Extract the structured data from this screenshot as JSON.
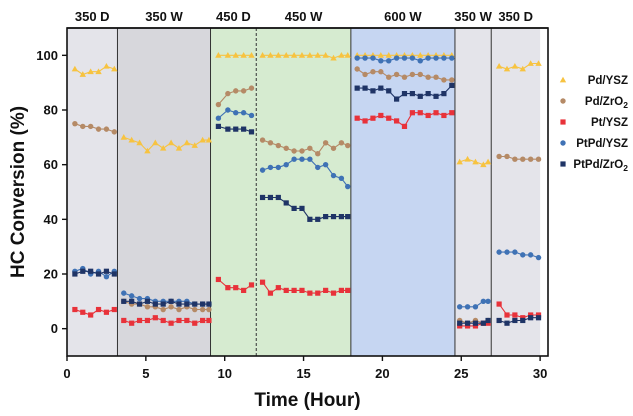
{
  "chart_data": {
    "type": "scatter",
    "title": "",
    "xlabel": "Time (Hour)",
    "ylabel": "HC Conversion (%)",
    "xlim": [
      0,
      30.5
    ],
    "ylim": [
      -10,
      110
    ],
    "xticks": [
      "0",
      "5",
      "10",
      "15",
      "20",
      "25",
      "30"
    ],
    "yticks": [
      "0",
      "20",
      "40",
      "60",
      "80",
      "100"
    ],
    "legend_position": "right",
    "regions": [
      {
        "label": "350 D",
        "x0": 0,
        "x1": 3.2,
        "color": "#e4e4ea"
      },
      {
        "label": "350 W",
        "x0": 3.2,
        "x1": 9.1,
        "color": "#d7d7dc"
      },
      {
        "label": "450 D",
        "x0": 9.1,
        "x1": 12.0,
        "color": "#d6ebd0"
      },
      {
        "label": "450 W",
        "x0": 12.0,
        "x1": 18.0,
        "color": "#d6ebd0"
      },
      {
        "label": "600 W",
        "x0": 18.0,
        "x1": 24.6,
        "color": "#c6d6f2"
      },
      {
        "label": "350 W",
        "x0": 24.6,
        "x1": 26.9,
        "color": "#e4e4ea"
      },
      {
        "label": "350 D",
        "x0": 26.9,
        "x1": 30.0,
        "color": "#e4e4ea"
      }
    ],
    "series": [
      {
        "name": "Pd/YSZ",
        "marker": "triangle",
        "color": "#f7c340",
        "points": [
          [
            0.5,
            95
          ],
          [
            1.0,
            93
          ],
          [
            1.5,
            94
          ],
          [
            2.0,
            94
          ],
          [
            2.5,
            96
          ],
          [
            3.0,
            95
          ],
          [
            3.6,
            70
          ],
          [
            4.1,
            69
          ],
          [
            4.6,
            68
          ],
          [
            5.1,
            65
          ],
          [
            5.6,
            68
          ],
          [
            6.1,
            66
          ],
          [
            6.6,
            68
          ],
          [
            7.1,
            66
          ],
          [
            7.6,
            68
          ],
          [
            8.1,
            67
          ],
          [
            8.6,
            69
          ],
          [
            9.0,
            69
          ],
          [
            9.6,
            100
          ],
          [
            10.2,
            100
          ],
          [
            10.7,
            100
          ],
          [
            11.2,
            100
          ],
          [
            11.7,
            100
          ],
          [
            12.4,
            100
          ],
          [
            12.9,
            100
          ],
          [
            13.4,
            100
          ],
          [
            13.9,
            100
          ],
          [
            14.4,
            100
          ],
          [
            14.9,
            100
          ],
          [
            15.4,
            100
          ],
          [
            15.9,
            100
          ],
          [
            16.4,
            100
          ],
          [
            16.9,
            99
          ],
          [
            17.4,
            100
          ],
          [
            17.8,
            100
          ],
          [
            18.4,
            100
          ],
          [
            18.9,
            100
          ],
          [
            19.4,
            100
          ],
          [
            19.9,
            100
          ],
          [
            20.4,
            100
          ],
          [
            20.9,
            100
          ],
          [
            21.4,
            100
          ],
          [
            21.9,
            100
          ],
          [
            22.4,
            100
          ],
          [
            22.9,
            100
          ],
          [
            23.4,
            100
          ],
          [
            23.9,
            100
          ],
          [
            24.4,
            100
          ],
          [
            24.9,
            61
          ],
          [
            25.4,
            62
          ],
          [
            25.9,
            61
          ],
          [
            26.4,
            60
          ],
          [
            26.7,
            61
          ],
          [
            27.4,
            96
          ],
          [
            27.9,
            95
          ],
          [
            28.4,
            96
          ],
          [
            28.9,
            95
          ],
          [
            29.4,
            97
          ],
          [
            29.9,
            97
          ]
        ]
      },
      {
        "name": "Pd/ZrO2",
        "marker": "circle",
        "color": "#b58a66",
        "points": [
          [
            0.5,
            75
          ],
          [
            1.0,
            74
          ],
          [
            1.5,
            74
          ],
          [
            2.0,
            73
          ],
          [
            2.5,
            73
          ],
          [
            3.0,
            72
          ],
          [
            3.6,
            10
          ],
          [
            4.1,
            9
          ],
          [
            4.6,
            9
          ],
          [
            5.1,
            8
          ],
          [
            5.6,
            8
          ],
          [
            6.1,
            7
          ],
          [
            6.6,
            8
          ],
          [
            7.1,
            7
          ],
          [
            7.6,
            8
          ],
          [
            8.1,
            7
          ],
          [
            8.6,
            7
          ],
          [
            9.0,
            7
          ],
          [
            9.6,
            82
          ],
          [
            10.2,
            86
          ],
          [
            10.7,
            87
          ],
          [
            11.2,
            87
          ],
          [
            11.7,
            88
          ],
          [
            12.4,
            69
          ],
          [
            12.9,
            68
          ],
          [
            13.4,
            67
          ],
          [
            13.9,
            66
          ],
          [
            14.4,
            65
          ],
          [
            14.9,
            65
          ],
          [
            15.4,
            66
          ],
          [
            15.9,
            64
          ],
          [
            16.4,
            68
          ],
          [
            16.9,
            66
          ],
          [
            17.4,
            68
          ],
          [
            17.8,
            67
          ],
          [
            18.4,
            95
          ],
          [
            18.9,
            93
          ],
          [
            19.4,
            94
          ],
          [
            19.9,
            94
          ],
          [
            20.4,
            92
          ],
          [
            20.9,
            93
          ],
          [
            21.4,
            92
          ],
          [
            21.9,
            93
          ],
          [
            22.4,
            93
          ],
          [
            22.9,
            92
          ],
          [
            23.4,
            92
          ],
          [
            23.9,
            91
          ],
          [
            24.4,
            91
          ],
          [
            24.9,
            3
          ],
          [
            25.4,
            2
          ],
          [
            25.9,
            3
          ],
          [
            26.4,
            2
          ],
          [
            26.7,
            3
          ],
          [
            27.4,
            63
          ],
          [
            27.9,
            63
          ],
          [
            28.4,
            62
          ],
          [
            28.9,
            62
          ],
          [
            29.4,
            62
          ],
          [
            29.9,
            62
          ]
        ]
      },
      {
        "name": "Pt/YSZ",
        "marker": "square",
        "color": "#e8323a",
        "points": [
          [
            0.5,
            7
          ],
          [
            1.0,
            6
          ],
          [
            1.5,
            5
          ],
          [
            2.0,
            7
          ],
          [
            2.5,
            6
          ],
          [
            3.0,
            7
          ],
          [
            3.6,
            3
          ],
          [
            4.1,
            2
          ],
          [
            4.6,
            3
          ],
          [
            5.1,
            3
          ],
          [
            5.6,
            4
          ],
          [
            6.1,
            3
          ],
          [
            6.6,
            2
          ],
          [
            7.1,
            3
          ],
          [
            7.6,
            3
          ],
          [
            8.1,
            2
          ],
          [
            8.6,
            3
          ],
          [
            9.0,
            3
          ],
          [
            9.6,
            18
          ],
          [
            10.2,
            15
          ],
          [
            10.7,
            15
          ],
          [
            11.2,
            14
          ],
          [
            11.7,
            16
          ],
          [
            12.4,
            17
          ],
          [
            12.9,
            13
          ],
          [
            13.4,
            15
          ],
          [
            13.9,
            14
          ],
          [
            14.4,
            14
          ],
          [
            14.9,
            14
          ],
          [
            15.4,
            13
          ],
          [
            15.9,
            13
          ],
          [
            16.4,
            14
          ],
          [
            16.9,
            13
          ],
          [
            17.4,
            14
          ],
          [
            17.8,
            14
          ],
          [
            18.4,
            77
          ],
          [
            18.9,
            76
          ],
          [
            19.4,
            77
          ],
          [
            19.9,
            78
          ],
          [
            20.4,
            77
          ],
          [
            20.9,
            76
          ],
          [
            21.4,
            74
          ],
          [
            21.9,
            79
          ],
          [
            22.4,
            79
          ],
          [
            22.9,
            78
          ],
          [
            23.4,
            79
          ],
          [
            23.9,
            78
          ],
          [
            24.4,
            79
          ],
          [
            24.9,
            1
          ],
          [
            25.4,
            1
          ],
          [
            25.9,
            1
          ],
          [
            26.4,
            2
          ],
          [
            26.7,
            2
          ],
          [
            27.4,
            9
          ],
          [
            27.9,
            5
          ],
          [
            28.4,
            5
          ],
          [
            28.9,
            4
          ],
          [
            29.4,
            5
          ],
          [
            29.9,
            5
          ]
        ]
      },
      {
        "name": "PtPd/YSZ",
        "marker": "circle",
        "color": "#3f72b5",
        "points": [
          [
            0.5,
            21
          ],
          [
            1.0,
            22
          ],
          [
            1.5,
            20
          ],
          [
            2.0,
            21
          ],
          [
            2.5,
            19
          ],
          [
            3.0,
            21
          ],
          [
            3.6,
            13
          ],
          [
            4.1,
            12
          ],
          [
            4.6,
            11
          ],
          [
            5.1,
            11
          ],
          [
            5.6,
            10
          ],
          [
            6.1,
            10
          ],
          [
            6.6,
            10
          ],
          [
            7.1,
            10
          ],
          [
            7.6,
            10
          ],
          [
            8.1,
            9
          ],
          [
            8.6,
            9
          ],
          [
            9.0,
            9
          ],
          [
            9.6,
            77
          ],
          [
            10.2,
            80
          ],
          [
            10.7,
            79
          ],
          [
            11.2,
            79
          ],
          [
            11.7,
            78
          ],
          [
            12.4,
            58
          ],
          [
            12.9,
            59
          ],
          [
            13.4,
            59
          ],
          [
            13.9,
            60
          ],
          [
            14.4,
            62
          ],
          [
            14.9,
            62
          ],
          [
            15.4,
            62
          ],
          [
            15.9,
            59
          ],
          [
            16.4,
            60
          ],
          [
            16.9,
            56
          ],
          [
            17.4,
            55
          ],
          [
            17.8,
            52
          ],
          [
            18.4,
            99
          ],
          [
            18.9,
            99
          ],
          [
            19.4,
            99
          ],
          [
            19.9,
            98
          ],
          [
            20.4,
            98
          ],
          [
            20.9,
            99
          ],
          [
            21.4,
            99
          ],
          [
            21.9,
            99
          ],
          [
            22.4,
            98
          ],
          [
            22.9,
            99
          ],
          [
            23.4,
            99
          ],
          [
            23.9,
            99
          ],
          [
            24.4,
            99
          ],
          [
            24.9,
            8
          ],
          [
            25.4,
            8
          ],
          [
            25.9,
            8
          ],
          [
            26.4,
            10
          ],
          [
            26.7,
            10
          ],
          [
            27.4,
            28
          ],
          [
            27.9,
            28
          ],
          [
            28.4,
            28
          ],
          [
            28.9,
            27
          ],
          [
            29.4,
            27
          ],
          [
            29.9,
            26
          ]
        ]
      },
      {
        "name": "PtPd/ZrO2",
        "marker": "square",
        "color": "#1f3466",
        "points": [
          [
            0.5,
            20
          ],
          [
            1.0,
            21
          ],
          [
            1.5,
            21
          ],
          [
            2.0,
            20
          ],
          [
            2.5,
            21
          ],
          [
            3.0,
            20
          ],
          [
            3.6,
            10
          ],
          [
            4.1,
            10
          ],
          [
            4.6,
            9
          ],
          [
            5.1,
            10
          ],
          [
            5.6,
            9
          ],
          [
            6.1,
            9
          ],
          [
            6.6,
            10
          ],
          [
            7.1,
            9
          ],
          [
            7.6,
            9
          ],
          [
            8.1,
            9
          ],
          [
            8.6,
            9
          ],
          [
            9.0,
            9
          ],
          [
            9.6,
            74
          ],
          [
            10.2,
            73
          ],
          [
            10.7,
            73
          ],
          [
            11.2,
            73
          ],
          [
            11.7,
            72
          ],
          [
            12.4,
            48
          ],
          [
            12.9,
            48
          ],
          [
            13.4,
            48
          ],
          [
            13.9,
            46
          ],
          [
            14.4,
            44
          ],
          [
            14.9,
            44
          ],
          [
            15.4,
            40
          ],
          [
            15.9,
            40
          ],
          [
            16.4,
            41
          ],
          [
            16.9,
            41
          ],
          [
            17.4,
            41
          ],
          [
            17.8,
            41
          ],
          [
            18.4,
            88
          ],
          [
            18.9,
            88
          ],
          [
            19.4,
            87
          ],
          [
            19.9,
            88
          ],
          [
            20.4,
            87
          ],
          [
            20.9,
            84
          ],
          [
            21.4,
            86
          ],
          [
            21.9,
            86
          ],
          [
            22.4,
            85
          ],
          [
            22.9,
            86
          ],
          [
            23.4,
            85
          ],
          [
            23.9,
            86
          ],
          [
            24.4,
            89
          ],
          [
            24.9,
            2
          ],
          [
            25.4,
            2
          ],
          [
            25.9,
            2
          ],
          [
            26.4,
            2
          ],
          [
            26.7,
            3
          ],
          [
            27.4,
            3
          ],
          [
            27.9,
            2
          ],
          [
            28.4,
            3
          ],
          [
            28.9,
            3
          ],
          [
            29.4,
            4
          ],
          [
            29.9,
            4
          ]
        ]
      }
    ]
  }
}
